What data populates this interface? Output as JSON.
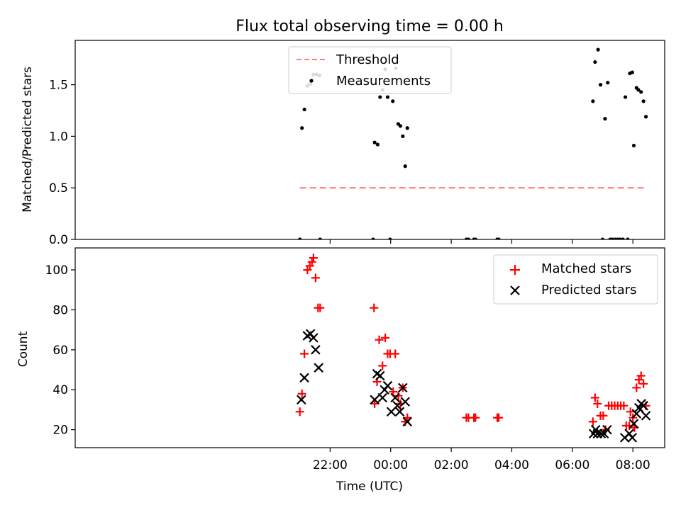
{
  "title": "Flux total observing time = 0.00 h",
  "chart_data": [
    {
      "type": "scatter",
      "ylabel": "Matched/Predicted stars",
      "xlabel": "",
      "xlim": [
        -10.42,
        9.05
      ],
      "ylim": [
        0,
        1.93
      ],
      "yticks": [
        0.0,
        0.5,
        1.0,
        1.5
      ],
      "ytick_labels": [
        "0.0",
        "0.5",
        "1.0",
        "1.5"
      ],
      "xticks": [
        -2,
        0,
        2,
        4,
        6,
        8
      ],
      "show_xtick_labels": false,
      "grid": false,
      "legend": {
        "placement": "top-center",
        "entries": [
          "Threshold",
          "Measurements"
        ]
      },
      "series": [
        {
          "name": "Threshold",
          "kind": "line",
          "style": "dashed",
          "color": "#ff7f7f",
          "x": [
            -3.0,
            8.45
          ],
          "y": [
            0.5,
            0.5
          ]
        },
        {
          "name": "Measurements",
          "kind": "scatter",
          "marker": "dot",
          "color": "#000000",
          "points": [
            [
              -3.0,
              0.0
            ],
            [
              -2.93,
              1.08
            ],
            [
              -2.85,
              1.26
            ],
            [
              -2.75,
              1.49
            ],
            [
              -2.65,
              1.51
            ],
            [
              -2.55,
              1.6
            ],
            [
              -2.45,
              1.6
            ],
            [
              -2.35,
              1.59
            ],
            [
              -2.33,
              0.0
            ],
            [
              -0.58,
              0.0
            ],
            [
              -0.53,
              0.94
            ],
            [
              -0.43,
              0.92
            ],
            [
              -0.35,
              1.38
            ],
            [
              -0.27,
              1.45
            ],
            [
              -0.18,
              1.65
            ],
            [
              -0.1,
              1.38
            ],
            [
              -0.02,
              0.0
            ],
            [
              0.07,
              1.34
            ],
            [
              0.17,
              1.66
            ],
            [
              0.25,
              1.12
            ],
            [
              0.32,
              1.1
            ],
            [
              0.4,
              1.0
            ],
            [
              0.48,
              0.71
            ],
            [
              0.55,
              1.08
            ],
            [
              2.5,
              0.0
            ],
            [
              2.57,
              0.0
            ],
            [
              2.75,
              0.0
            ],
            [
              2.8,
              0.0
            ],
            [
              3.52,
              0.0
            ],
            [
              3.57,
              0.0
            ],
            [
              6.68,
              1.34
            ],
            [
              6.75,
              1.72
            ],
            [
              6.85,
              1.84
            ],
            [
              6.93,
              1.5
            ],
            [
              7.0,
              0.0
            ],
            [
              7.08,
              1.17
            ],
            [
              7.17,
              1.52
            ],
            [
              7.25,
              0.0
            ],
            [
              7.33,
              0.0
            ],
            [
              7.42,
              0.0
            ],
            [
              7.5,
              0.0
            ],
            [
              7.58,
              0.0
            ],
            [
              7.67,
              0.0
            ],
            [
              7.75,
              1.38
            ],
            [
              7.83,
              0.0
            ],
            [
              7.9,
              1.61
            ],
            [
              7.98,
              1.62
            ],
            [
              8.03,
              0.91
            ],
            [
              8.12,
              1.47
            ],
            [
              8.18,
              1.45
            ],
            [
              8.27,
              1.43
            ],
            [
              8.35,
              1.34
            ],
            [
              8.43,
              1.19
            ]
          ]
        }
      ]
    },
    {
      "type": "scatter",
      "ylabel": "Count",
      "xlabel": "Time (UTC)",
      "xlim": [
        -10.42,
        9.05
      ],
      "ylim": [
        11,
        111
      ],
      "yticks": [
        20,
        40,
        60,
        80,
        100
      ],
      "ytick_labels": [
        "20",
        "40",
        "60",
        "80",
        "100"
      ],
      "xticks": [
        -2,
        0,
        2,
        4,
        6,
        8
      ],
      "xtick_labels": [
        "22:00",
        "00:00",
        "02:00",
        "04:00",
        "06:00",
        "08:00"
      ],
      "grid": false,
      "legend": {
        "placement": "top-right",
        "entries": [
          "Matched stars",
          "Predicted stars"
        ]
      },
      "series": [
        {
          "name": "Matched stars",
          "kind": "scatter",
          "marker": "plus",
          "color": "#ff0000",
          "points": [
            [
              -3.0,
              29
            ],
            [
              -2.93,
              38
            ],
            [
              -2.85,
              58
            ],
            [
              -2.75,
              100
            ],
            [
              -2.67,
              102
            ],
            [
              -2.6,
              104
            ],
            [
              -2.55,
              106
            ],
            [
              -2.48,
              96
            ],
            [
              -2.4,
              81
            ],
            [
              -2.33,
              81
            ],
            [
              -0.55,
              81
            ],
            [
              -0.53,
              33
            ],
            [
              -0.45,
              44
            ],
            [
              -0.38,
              65
            ],
            [
              -0.27,
              52
            ],
            [
              -0.18,
              66
            ],
            [
              -0.1,
              58
            ],
            [
              -0.02,
              58
            ],
            [
              0.08,
              39
            ],
            [
              0.15,
              58
            ],
            [
              0.25,
              37
            ],
            [
              0.32,
              33
            ],
            [
              0.4,
              41
            ],
            [
              0.48,
              24
            ],
            [
              0.55,
              26
            ],
            [
              2.5,
              26
            ],
            [
              2.57,
              26
            ],
            [
              2.75,
              26
            ],
            [
              2.8,
              26
            ],
            [
              3.52,
              26
            ],
            [
              3.57,
              26
            ],
            [
              6.68,
              24
            ],
            [
              6.75,
              36
            ],
            [
              6.83,
              33
            ],
            [
              6.93,
              27
            ],
            [
              7.02,
              27
            ],
            [
              7.1,
              20
            ],
            [
              7.2,
              32
            ],
            [
              7.3,
              32
            ],
            [
              7.4,
              32
            ],
            [
              7.5,
              32
            ],
            [
              7.6,
              32
            ],
            [
              7.7,
              32
            ],
            [
              7.78,
              22
            ],
            [
              7.88,
              22
            ],
            [
              7.92,
              29
            ],
            [
              8.0,
              26
            ],
            [
              8.05,
              21
            ],
            [
              8.12,
              41
            ],
            [
              8.2,
              45
            ],
            [
              8.27,
              47
            ],
            [
              8.35,
              43
            ],
            [
              8.43,
              32
            ]
          ]
        },
        {
          "name": "Predicted stars",
          "kind": "scatter",
          "marker": "x",
          "color": "#000000",
          "points": [
            [
              -2.95,
              35
            ],
            [
              -2.85,
              46
            ],
            [
              -2.75,
              67
            ],
            [
              -2.65,
              68
            ],
            [
              -2.55,
              66
            ],
            [
              -2.48,
              60
            ],
            [
              -2.38,
              51
            ],
            [
              -0.53,
              35
            ],
            [
              -0.45,
              48
            ],
            [
              -0.35,
              47
            ],
            [
              -0.27,
              36
            ],
            [
              -0.2,
              40
            ],
            [
              -0.1,
              42
            ],
            [
              0.02,
              29
            ],
            [
              0.15,
              36
            ],
            [
              0.22,
              32
            ],
            [
              0.3,
              29
            ],
            [
              0.4,
              41
            ],
            [
              0.48,
              34
            ],
            [
              0.55,
              24
            ],
            [
              6.7,
              18
            ],
            [
              6.77,
              20
            ],
            [
              6.83,
              18
            ],
            [
              6.95,
              18
            ],
            [
              7.05,
              18
            ],
            [
              7.15,
              20
            ],
            [
              7.73,
              16
            ],
            [
              7.88,
              18
            ],
            [
              7.98,
              16
            ],
            [
              8.03,
              23
            ],
            [
              8.12,
              28
            ],
            [
              8.2,
              31
            ],
            [
              8.28,
              33
            ],
            [
              8.35,
              32
            ],
            [
              8.43,
              27
            ]
          ]
        }
      ]
    }
  ]
}
